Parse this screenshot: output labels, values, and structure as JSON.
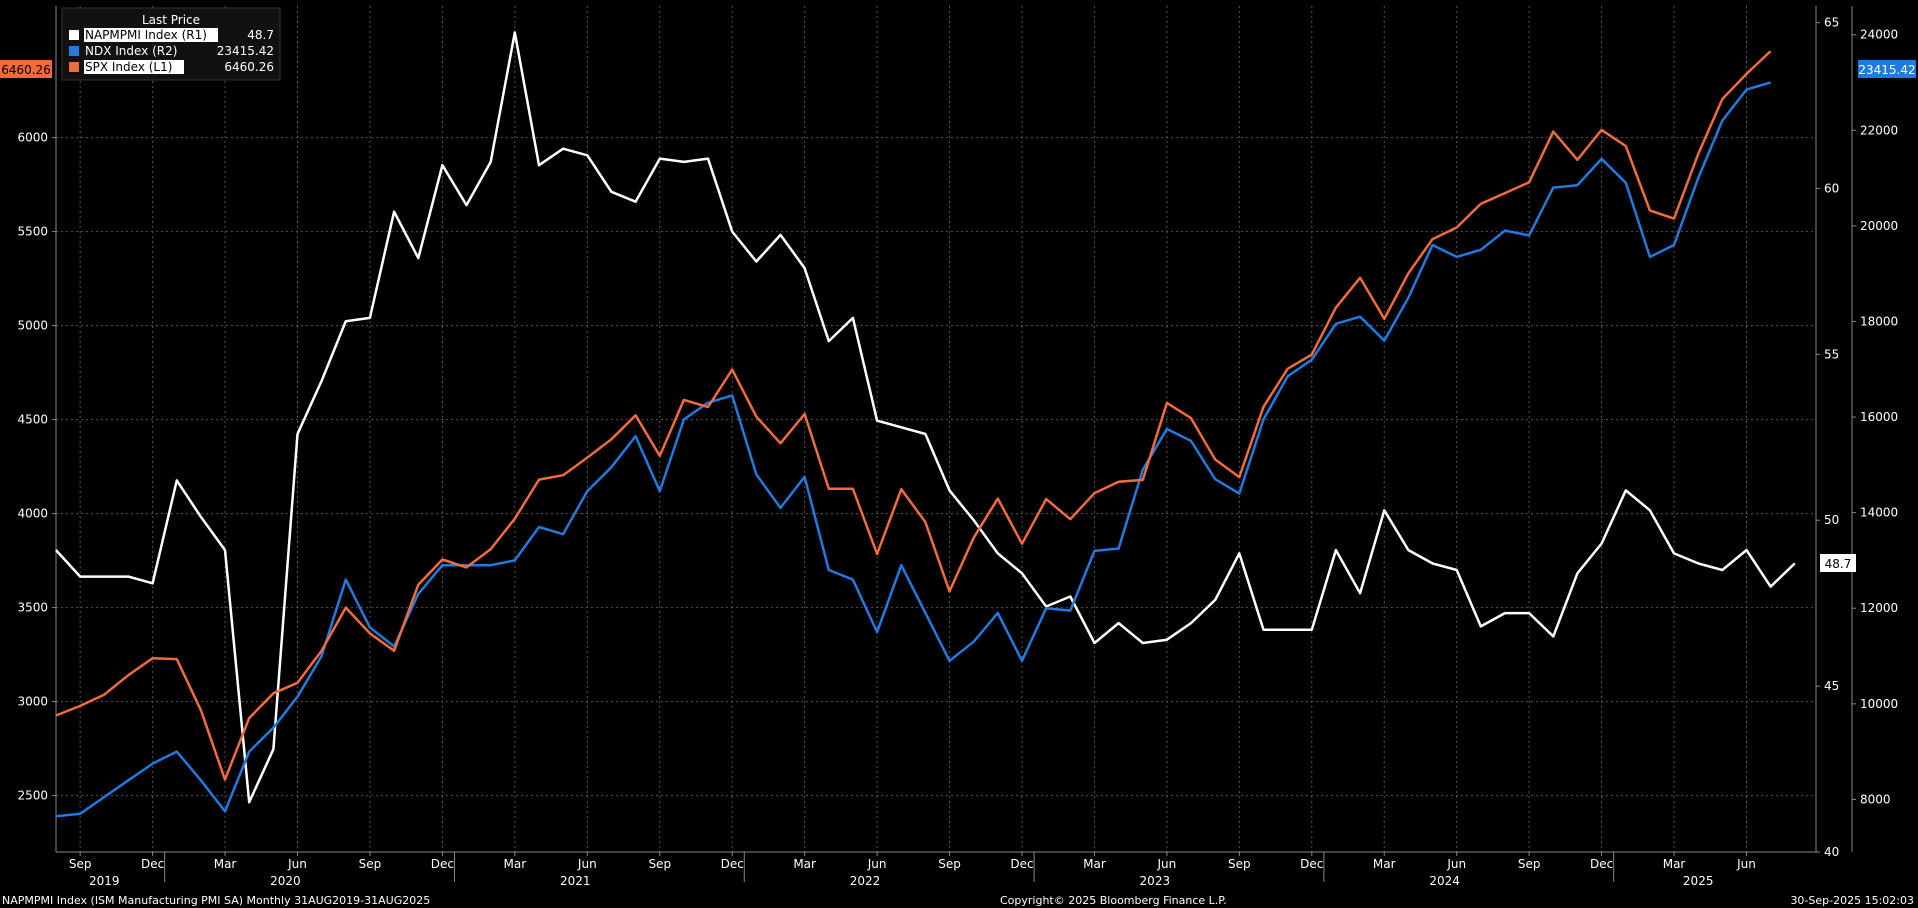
{
  "legend": {
    "title": "Last Price",
    "items": [
      {
        "name": "NAPMPMI Index  (R1)",
        "value": "48.7",
        "color": "#ffffff"
      },
      {
        "name": "NDX Index  (R2)",
        "value": "23415.42",
        "color": "#1f7be0"
      },
      {
        "name": "SPX Index  (L1)",
        "value": "6460.26",
        "color": "#f26b3a"
      }
    ]
  },
  "price_tags": {
    "spx": "6460.26",
    "ndx": "23415.42",
    "pmi": "48.7"
  },
  "footer": {
    "left": "NAPMPMI Index (ISM Manufacturing PMI SA)  Monthly 31AUG2019-31AUG2025",
    "center": "Copyright© 2025 Bloomberg Finance L.P.",
    "right": "30-Sep-2025 15:02:03"
  },
  "chart_data": {
    "type": "line",
    "x_start": "2019-08",
    "x_axis": {
      "month_ticks": [
        "Sep",
        "Dec",
        "Mar",
        "Jun",
        "Sep",
        "Dec",
        "Mar",
        "Jun",
        "Sep",
        "Dec",
        "Mar",
        "Jun",
        "Sep",
        "Dec",
        "Mar",
        "Jun",
        "Sep",
        "Dec",
        "Mar",
        "Jun",
        "Sep",
        "Dec",
        "Mar",
        "Jun"
      ],
      "year_labels": [
        "2019",
        "2020",
        "2021",
        "2022",
        "2023",
        "2024",
        "2025"
      ]
    },
    "axes": {
      "L1": {
        "min": 2200,
        "max": 6700,
        "ticks": [
          2500,
          3000,
          3500,
          4000,
          4500,
          5000,
          5500,
          6000
        ]
      },
      "R1": {
        "min": 40,
        "max": 65.5,
        "ticks": [
          40,
          45,
          50,
          55,
          60,
          65
        ]
      },
      "R2": {
        "min": 6900,
        "max": 24600,
        "ticks": [
          8000,
          10000,
          12000,
          14000,
          16000,
          18000,
          20000,
          22000,
          24000
        ]
      }
    },
    "series": [
      {
        "name": "NAPMPMI Index  (R1)",
        "axis": "R1",
        "color": "#ffffff",
        "values": [
          49.1,
          48.3,
          48.3,
          48.3,
          48.1,
          51.2,
          50.1,
          49.1,
          41.5,
          43.1,
          52.6,
          54.2,
          56.0,
          56.1,
          59.3,
          57.9,
          60.7,
          59.5,
          60.8,
          64.7,
          60.7,
          61.2,
          61.0,
          59.9,
          59.6,
          60.9,
          60.8,
          60.9,
          58.7,
          57.8,
          58.6,
          57.6,
          55.4,
          56.1,
          53.0,
          52.8,
          52.6,
          50.9,
          50.0,
          49.0,
          48.4,
          47.4,
          47.7,
          46.3,
          46.9,
          46.3,
          46.4,
          46.9,
          47.6,
          49.0,
          46.7,
          46.7,
          46.7,
          49.1,
          47.8,
          50.3,
          49.1,
          48.7,
          48.5,
          46.8,
          47.2,
          47.2,
          46.5,
          48.4,
          49.3,
          50.9,
          50.3,
          49.0,
          48.7,
          48.5,
          49.1,
          48.0,
          48.7
        ]
      },
      {
        "name": "NDX Index  (R2)",
        "axis": "R2",
        "color": "#1f7be0",
        "values": [
          7650,
          7700,
          8050,
          8400,
          8750,
          9000,
          8400,
          7750,
          9000,
          9500,
          10150,
          11000,
          12600,
          11600,
          11200,
          12300,
          12900,
          12900,
          12900,
          13000,
          13700,
          13550,
          14450,
          14950,
          15600,
          14450,
          15950,
          16300,
          16450,
          14800,
          14100,
          14750,
          12800,
          12600,
          11500,
          12900,
          11900,
          10900,
          11300,
          11900,
          10900,
          12000,
          11950,
          13200,
          13250,
          14900,
          15750,
          15500,
          14700,
          14400,
          15950,
          16850,
          17200,
          17950,
          18100,
          17600,
          18500,
          19600,
          19350,
          19500,
          19900,
          19800,
          20800,
          20850,
          21400,
          20900,
          19350,
          19600,
          21000,
          22200,
          22850,
          23000
        ]
      },
      {
        "name": "SPX Index  (L1)",
        "axis": "L1",
        "color": "#f26b3a",
        "values": [
          2926,
          2977,
          3037,
          3141,
          3231,
          3226,
          2954,
          2585,
          2912,
          3044,
          3100,
          3271,
          3500,
          3363,
          3270,
          3622,
          3756,
          3714,
          3811,
          3973,
          4181,
          4204,
          4298,
          4395,
          4523,
          4307,
          4605,
          4567,
          4766,
          4516,
          4374,
          4530,
          4132,
          4132,
          3785,
          4130,
          3955,
          3586,
          3872,
          4080,
          3840,
          4077,
          3970,
          4109,
          4169,
          4179,
          4589,
          4508,
          4288,
          4194,
          4568,
          4770,
          4846,
          5096,
          5254,
          5036,
          5278,
          5460,
          5522,
          5648,
          5705,
          5762,
          6032,
          5882,
          6041,
          5955,
          5612,
          5569,
          5912,
          6205,
          6339,
          6460
        ]
      }
    ]
  }
}
